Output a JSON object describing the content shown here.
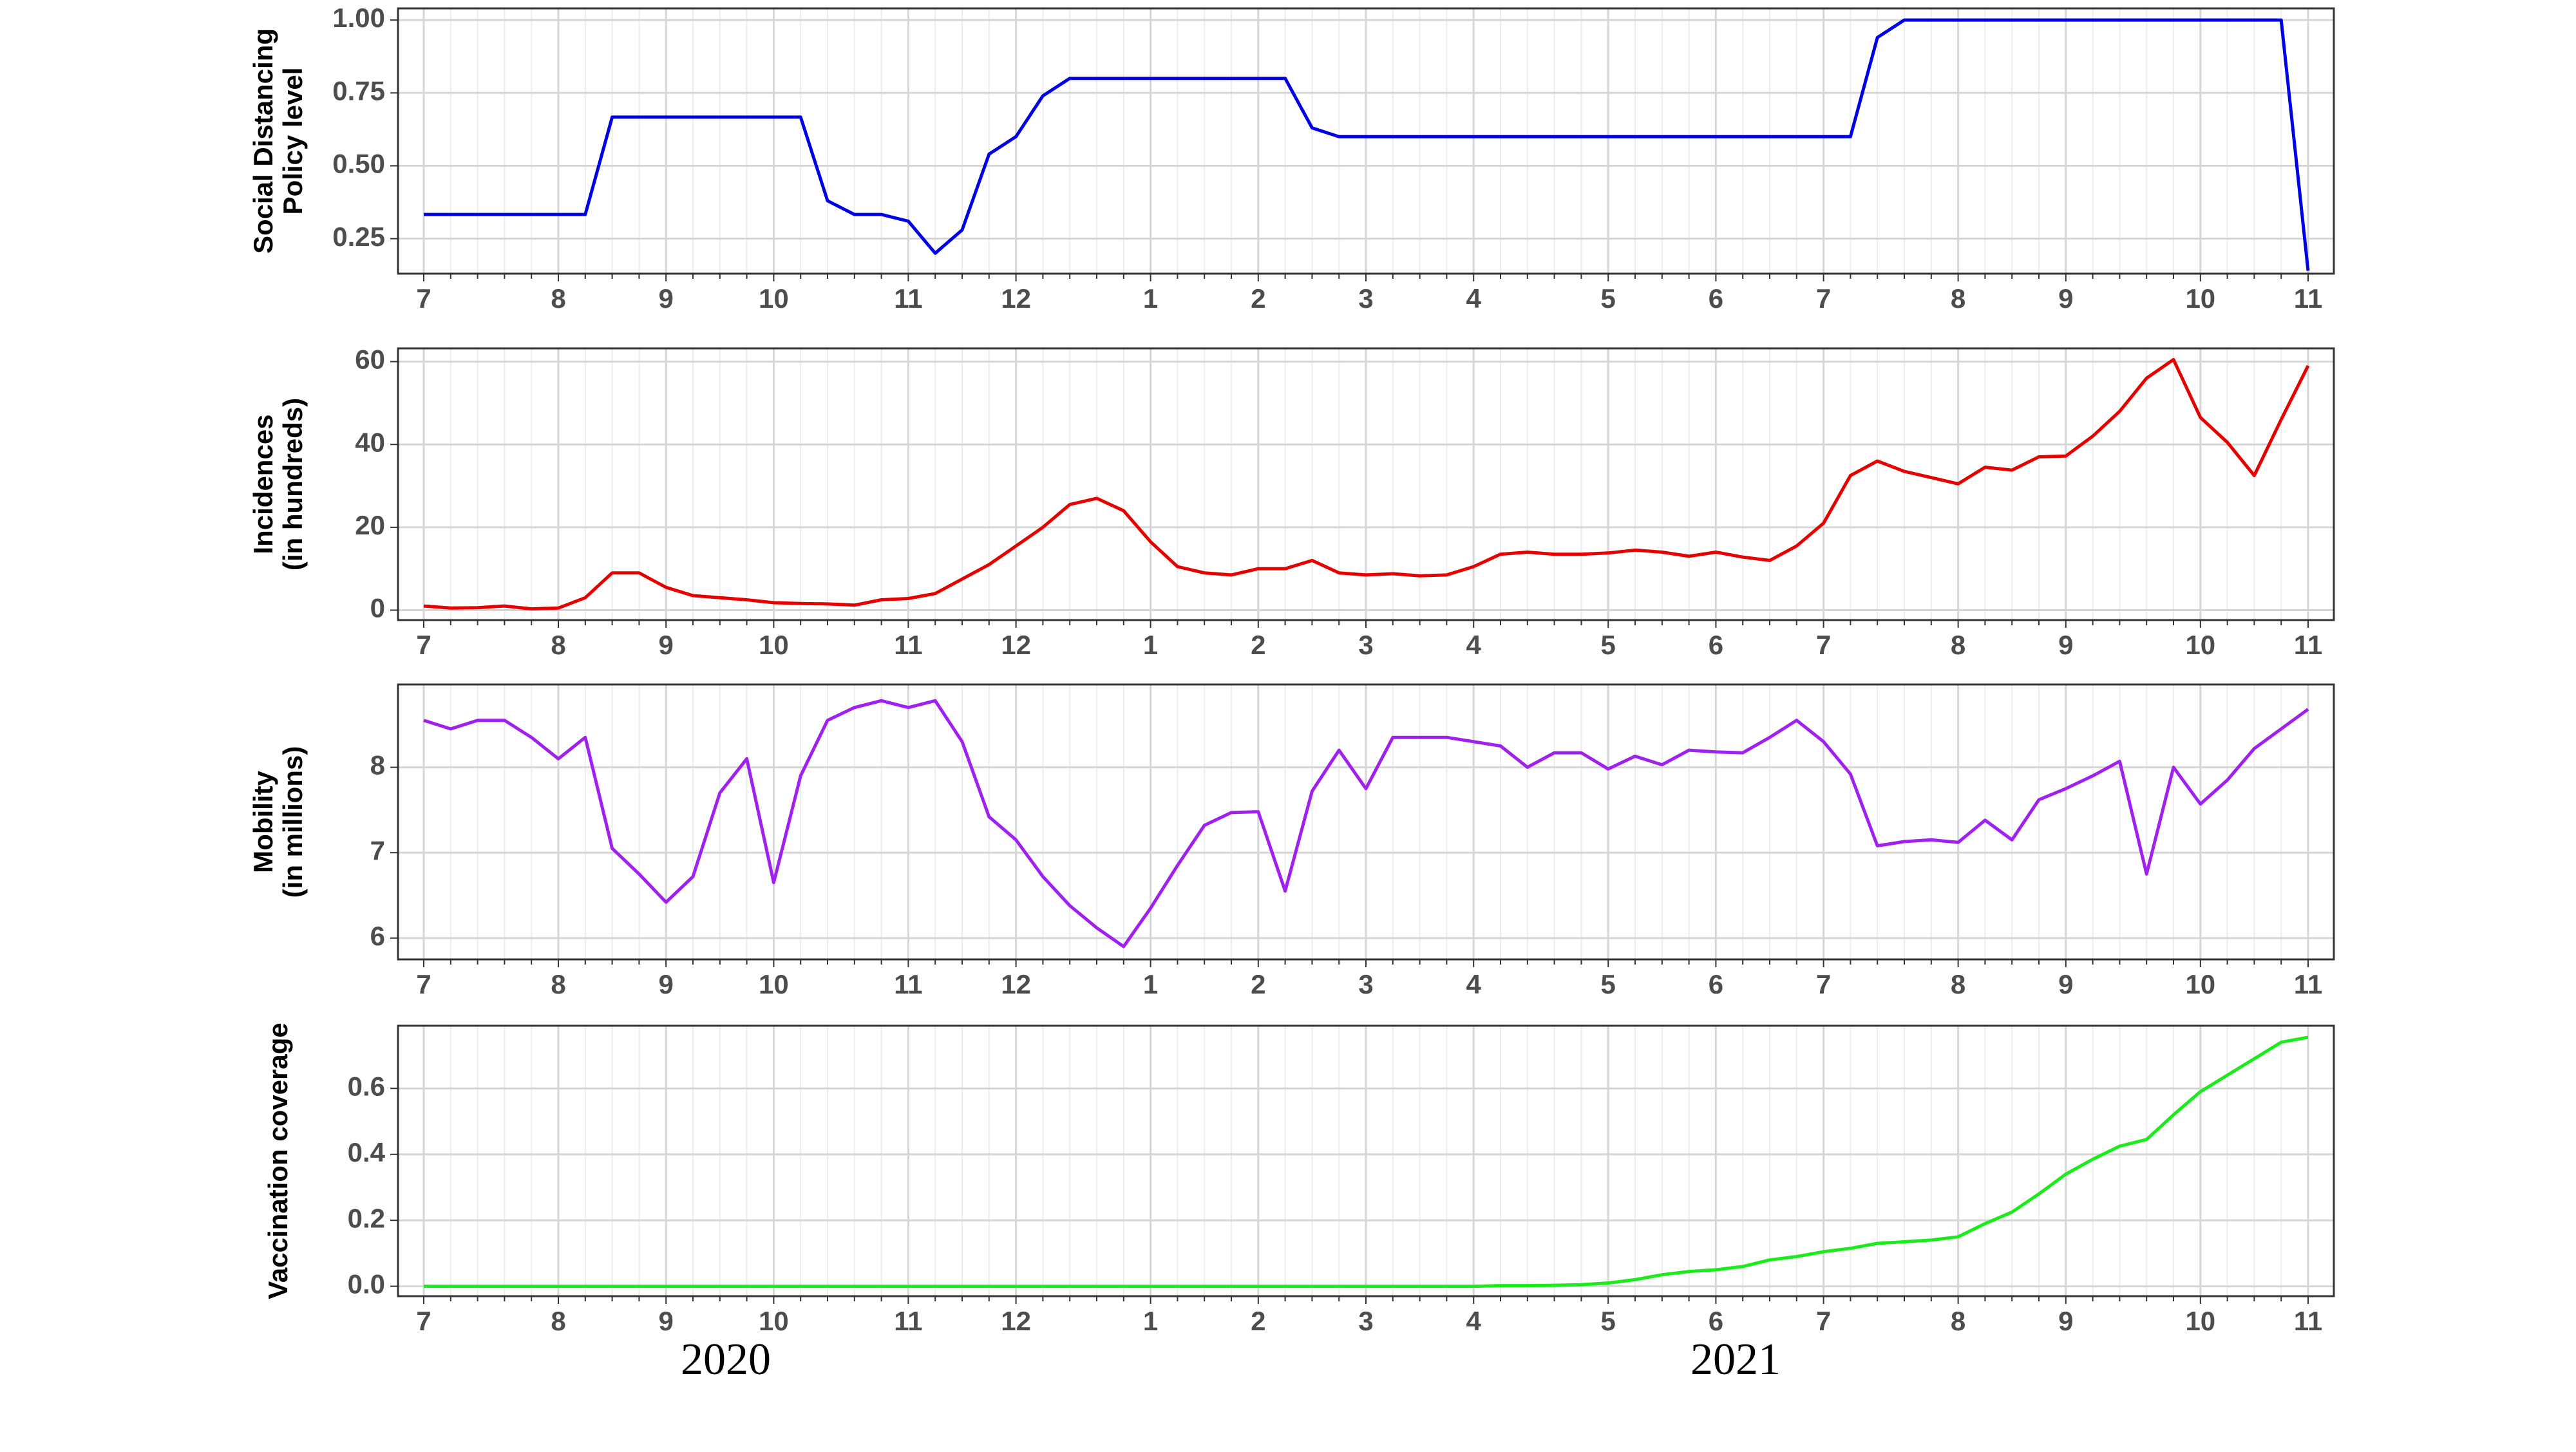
{
  "chart_data": [
    {
      "type": "line",
      "ylabel": [
        "Social Distancing",
        "Policy level"
      ],
      "color": "#0000e6",
      "categories": [
        "7",
        null,
        null,
        null,
        null,
        "8",
        null,
        null,
        null,
        "9",
        null,
        null,
        null,
        "10",
        null,
        null,
        null,
        null,
        "11",
        null,
        null,
        null,
        "12",
        null,
        null,
        null,
        null,
        "1",
        null,
        null,
        null,
        "2",
        null,
        null,
        null,
        "3",
        null,
        null,
        null,
        "4",
        null,
        null,
        null,
        null,
        "5",
        null,
        null,
        null,
        "6",
        null,
        null,
        null,
        "7",
        null,
        null,
        null,
        null,
        "8",
        null,
        null,
        null,
        "9",
        null,
        null,
        null,
        null,
        "10",
        null,
        null,
        null,
        "11"
      ],
      "values": [
        0.333,
        0.333,
        0.333,
        0.333,
        0.333,
        0.333,
        0.333,
        0.667,
        0.667,
        0.667,
        0.667,
        0.667,
        0.667,
        0.667,
        0.667,
        0.38,
        0.333,
        0.333,
        0.31,
        0.2,
        0.28,
        0.54,
        0.6,
        0.74,
        0.8,
        0.8,
        0.8,
        0.8,
        0.8,
        0.8,
        0.8,
        0.8,
        0.8,
        0.63,
        0.6,
        0.6,
        0.6,
        0.6,
        0.6,
        0.6,
        0.6,
        0.6,
        0.6,
        0.6,
        0.6,
        0.6,
        0.6,
        0.6,
        0.6,
        0.6,
        0.6,
        0.6,
        0.6,
        0.6,
        0.94,
        1,
        1,
        1,
        1,
        1,
        1,
        1,
        1,
        1,
        1,
        1,
        1,
        1,
        1,
        1,
        0.14
      ],
      "ylim": [
        0.13,
        1.04
      ],
      "yticks": [
        {
          "value": 0.25,
          "label": "0.25"
        },
        {
          "value": 0.5,
          "label": "0.50"
        },
        {
          "value": 0.75,
          "label": "0.75"
        },
        {
          "value": 1,
          "label": "1.00"
        }
      ],
      "grid": true
    },
    {
      "type": "line",
      "ylabel": [
        "Incidences",
        "(in hundreds)"
      ],
      "color": "#e60000",
      "categories": [
        "7",
        null,
        null,
        null,
        null,
        "8",
        null,
        null,
        null,
        "9",
        null,
        null,
        null,
        "10",
        null,
        null,
        null,
        null,
        "11",
        null,
        null,
        null,
        "12",
        null,
        null,
        null,
        null,
        "1",
        null,
        null,
        null,
        "2",
        null,
        null,
        null,
        "3",
        null,
        null,
        null,
        "4",
        null,
        null,
        null,
        null,
        "5",
        null,
        null,
        null,
        "6",
        null,
        null,
        null,
        "7",
        null,
        null,
        null,
        null,
        "8",
        null,
        null,
        null,
        "9",
        null,
        null,
        null,
        null,
        "10",
        null,
        null,
        null,
        "11"
      ],
      "values": [
        1,
        0.5,
        0.6,
        1,
        0.3,
        0.5,
        3,
        9,
        9,
        5.5,
        3.5,
        3,
        2.5,
        1.8,
        1.6,
        1.5,
        1.2,
        2.5,
        2.8,
        4,
        7.5,
        11,
        15.5,
        20,
        25.5,
        27,
        24,
        16.5,
        10.5,
        9,
        8.5,
        10,
        10,
        12,
        9,
        8.5,
        8.8,
        8.3,
        8.5,
        10.5,
        13.5,
        14,
        13.5,
        13.5,
        13.8,
        14.5,
        14,
        13,
        14,
        12.8,
        12,
        15.5,
        21,
        32.5,
        36,
        33.5,
        32,
        30.5,
        34.5,
        33.8,
        37,
        37.2,
        42,
        48,
        56,
        60.5,
        46.5,
        40.5,
        32.5,
        46,
        59
      ],
      "ylim": [
        -2.4,
        63.2
      ],
      "yticks": [
        0,
        20,
        40,
        60
      ],
      "grid": true
    },
    {
      "type": "line",
      "ylabel": [
        "Mobility",
        "(in millions)"
      ],
      "color": "#a020f0",
      "categories": [
        "7",
        null,
        null,
        null,
        null,
        "8",
        null,
        null,
        null,
        "9",
        null,
        null,
        null,
        "10",
        null,
        null,
        null,
        null,
        "11",
        null,
        null,
        null,
        "12",
        null,
        null,
        null,
        null,
        "1",
        null,
        null,
        null,
        "2",
        null,
        null,
        null,
        "3",
        null,
        null,
        null,
        "4",
        null,
        null,
        null,
        null,
        "5",
        null,
        null,
        null,
        "6",
        null,
        null,
        null,
        "7",
        null,
        null,
        null,
        null,
        "8",
        null,
        null,
        null,
        "9",
        null,
        null,
        null,
        null,
        "10",
        null,
        null,
        null,
        "11"
      ],
      "values": [
        8.55,
        8.45,
        8.55,
        8.55,
        8.35,
        8.1,
        8.35,
        7.05,
        6.75,
        6.42,
        6.72,
        7.7,
        8.1,
        6.65,
        7.9,
        8.55,
        8.7,
        8.78,
        8.7,
        8.78,
        8.3,
        7.42,
        7.15,
        6.72,
        6.38,
        6.12,
        5.9,
        6.35,
        6.85,
        7.32,
        7.47,
        7.48,
        6.55,
        7.72,
        8.2,
        7.75,
        8.35,
        8.35,
        8.35,
        8.3,
        8.25,
        8.0,
        8.17,
        8.17,
        7.98,
        8.13,
        8.03,
        8.2,
        8.18,
        8.17,
        8.35,
        8.55,
        8.3,
        7.92,
        7.08,
        7.13,
        7.15,
        7.12,
        7.38,
        7.15,
        7.62,
        7.75,
        7.9,
        8.07,
        6.75,
        8.0,
        7.57,
        7.85,
        8.22,
        8.45,
        8.68
      ],
      "ylim": [
        5.75,
        8.97
      ],
      "yticks": [
        6,
        7,
        8
      ],
      "grid": true
    },
    {
      "type": "line",
      "ylabel": [
        "Vaccination coverage"
      ],
      "color": "#1aeb1a",
      "categories": [
        "7",
        null,
        null,
        null,
        null,
        "8",
        null,
        null,
        null,
        "9",
        null,
        null,
        null,
        "10",
        null,
        null,
        null,
        null,
        "11",
        null,
        null,
        null,
        "12",
        null,
        null,
        null,
        null,
        "1",
        null,
        null,
        null,
        "2",
        null,
        null,
        null,
        "3",
        null,
        null,
        null,
        "4",
        null,
        null,
        null,
        null,
        "5",
        null,
        null,
        null,
        "6",
        null,
        null,
        null,
        "7",
        null,
        null,
        null,
        null,
        "8",
        null,
        null,
        null,
        "9",
        null,
        null,
        null,
        null,
        "10",
        null,
        null,
        null,
        "11"
      ],
      "values": [
        0,
        0,
        0,
        0,
        0,
        0,
        0,
        0,
        0,
        0,
        0,
        0,
        0,
        0,
        0,
        0,
        0,
        0,
        0,
        0,
        0,
        0,
        0,
        0,
        0,
        0,
        0,
        0,
        0,
        0,
        0,
        0,
        0,
        0,
        0,
        0,
        0,
        0,
        0,
        0,
        0.002,
        0.002,
        0.003,
        0.005,
        0.01,
        0.02,
        0.035,
        0.045,
        0.05,
        0.06,
        0.08,
        0.09,
        0.105,
        0.115,
        0.13,
        0.135,
        0.14,
        0.15,
        0.19,
        0.225,
        0.28,
        0.34,
        0.385,
        0.425,
        0.445,
        0.52,
        0.59,
        0.64,
        0.69,
        0.74,
        0.755
      ],
      "ylim": [
        -0.03,
        0.79
      ],
      "yticks": [
        {
          "value": 0,
          "label": "0.0"
        },
        0.2,
        0.4,
        0.6
      ],
      "grid": true
    }
  ],
  "year_labels": [
    "2020",
    "2021"
  ]
}
